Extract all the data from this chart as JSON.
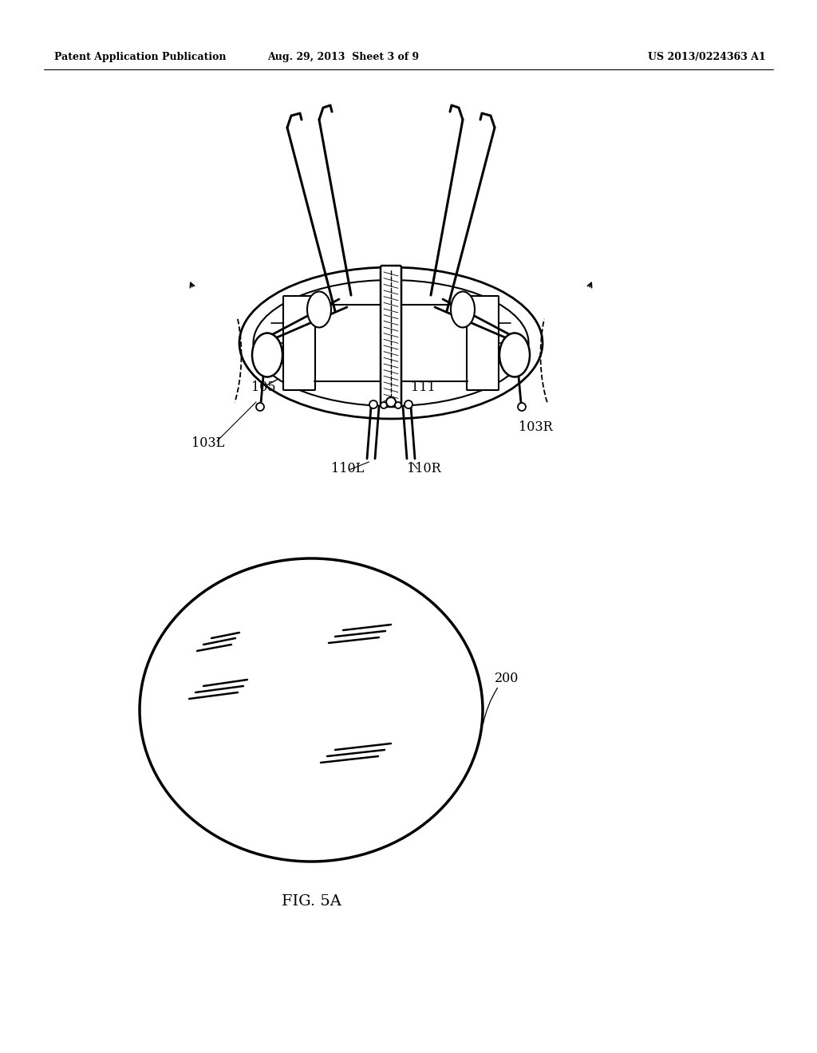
{
  "header_left": "Patent Application Publication",
  "header_mid": "Aug. 29, 2013  Sheet 3 of 9",
  "header_right": "US 2013/0224363 A1",
  "fig_label": "FIG. 5A",
  "bg_color": "#ffffff",
  "line_color": "#000000"
}
